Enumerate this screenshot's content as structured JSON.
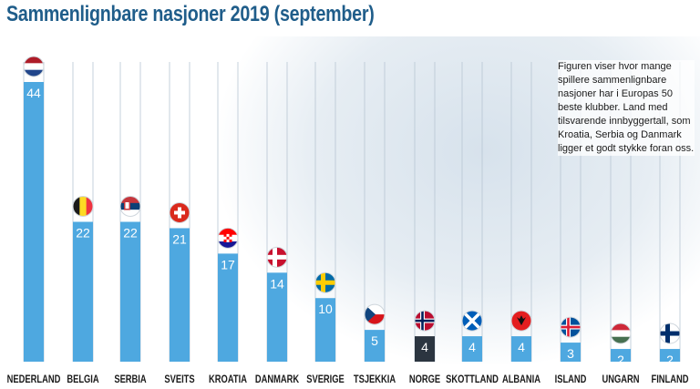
{
  "title": "Sammenlignbare nasjoner 2019 (september)",
  "annotation": "Figuren viser hvor mange spillere sammenlignbare nasjoner har i Europas 50 beste klubber. Land med tilsvarende innbyggertall, som Kroatia, Serbia og Danmark ligger et godt stykke foran oss.",
  "colors": {
    "bar": "#4ea8e0",
    "highlight_bar": "#2b3540",
    "title": "#1f5d8a",
    "grid": "#b8c6d3"
  },
  "chart_data": {
    "type": "bar",
    "title": "Sammenlignbare nasjoner 2019 (september)",
    "xlabel": "",
    "ylabel": "",
    "ylim": [
      0,
      44
    ],
    "grid": true,
    "highlight": "NORGE",
    "categories": [
      "NEDERLAND",
      "BELGIA",
      "SERBIA",
      "SVEITS",
      "KROATIA",
      "DANMARK",
      "SVERIGE",
      "TSJEKKIA",
      "NORGE",
      "SKOTTLAND",
      "ALBANIA",
      "ISLAND",
      "UNGARN",
      "FINLAND"
    ],
    "values": [
      44,
      22,
      22,
      21,
      17,
      14,
      10,
      5,
      4,
      4,
      4,
      3,
      2,
      2
    ],
    "flags": [
      "netherlands-flag",
      "belgium-flag",
      "serbia-flag",
      "switzerland-flag",
      "croatia-flag",
      "denmark-flag",
      "sweden-flag",
      "czechia-flag",
      "norway-flag",
      "scotland-flag",
      "albania-flag",
      "iceland-flag",
      "hungary-flag",
      "finland-flag"
    ]
  }
}
